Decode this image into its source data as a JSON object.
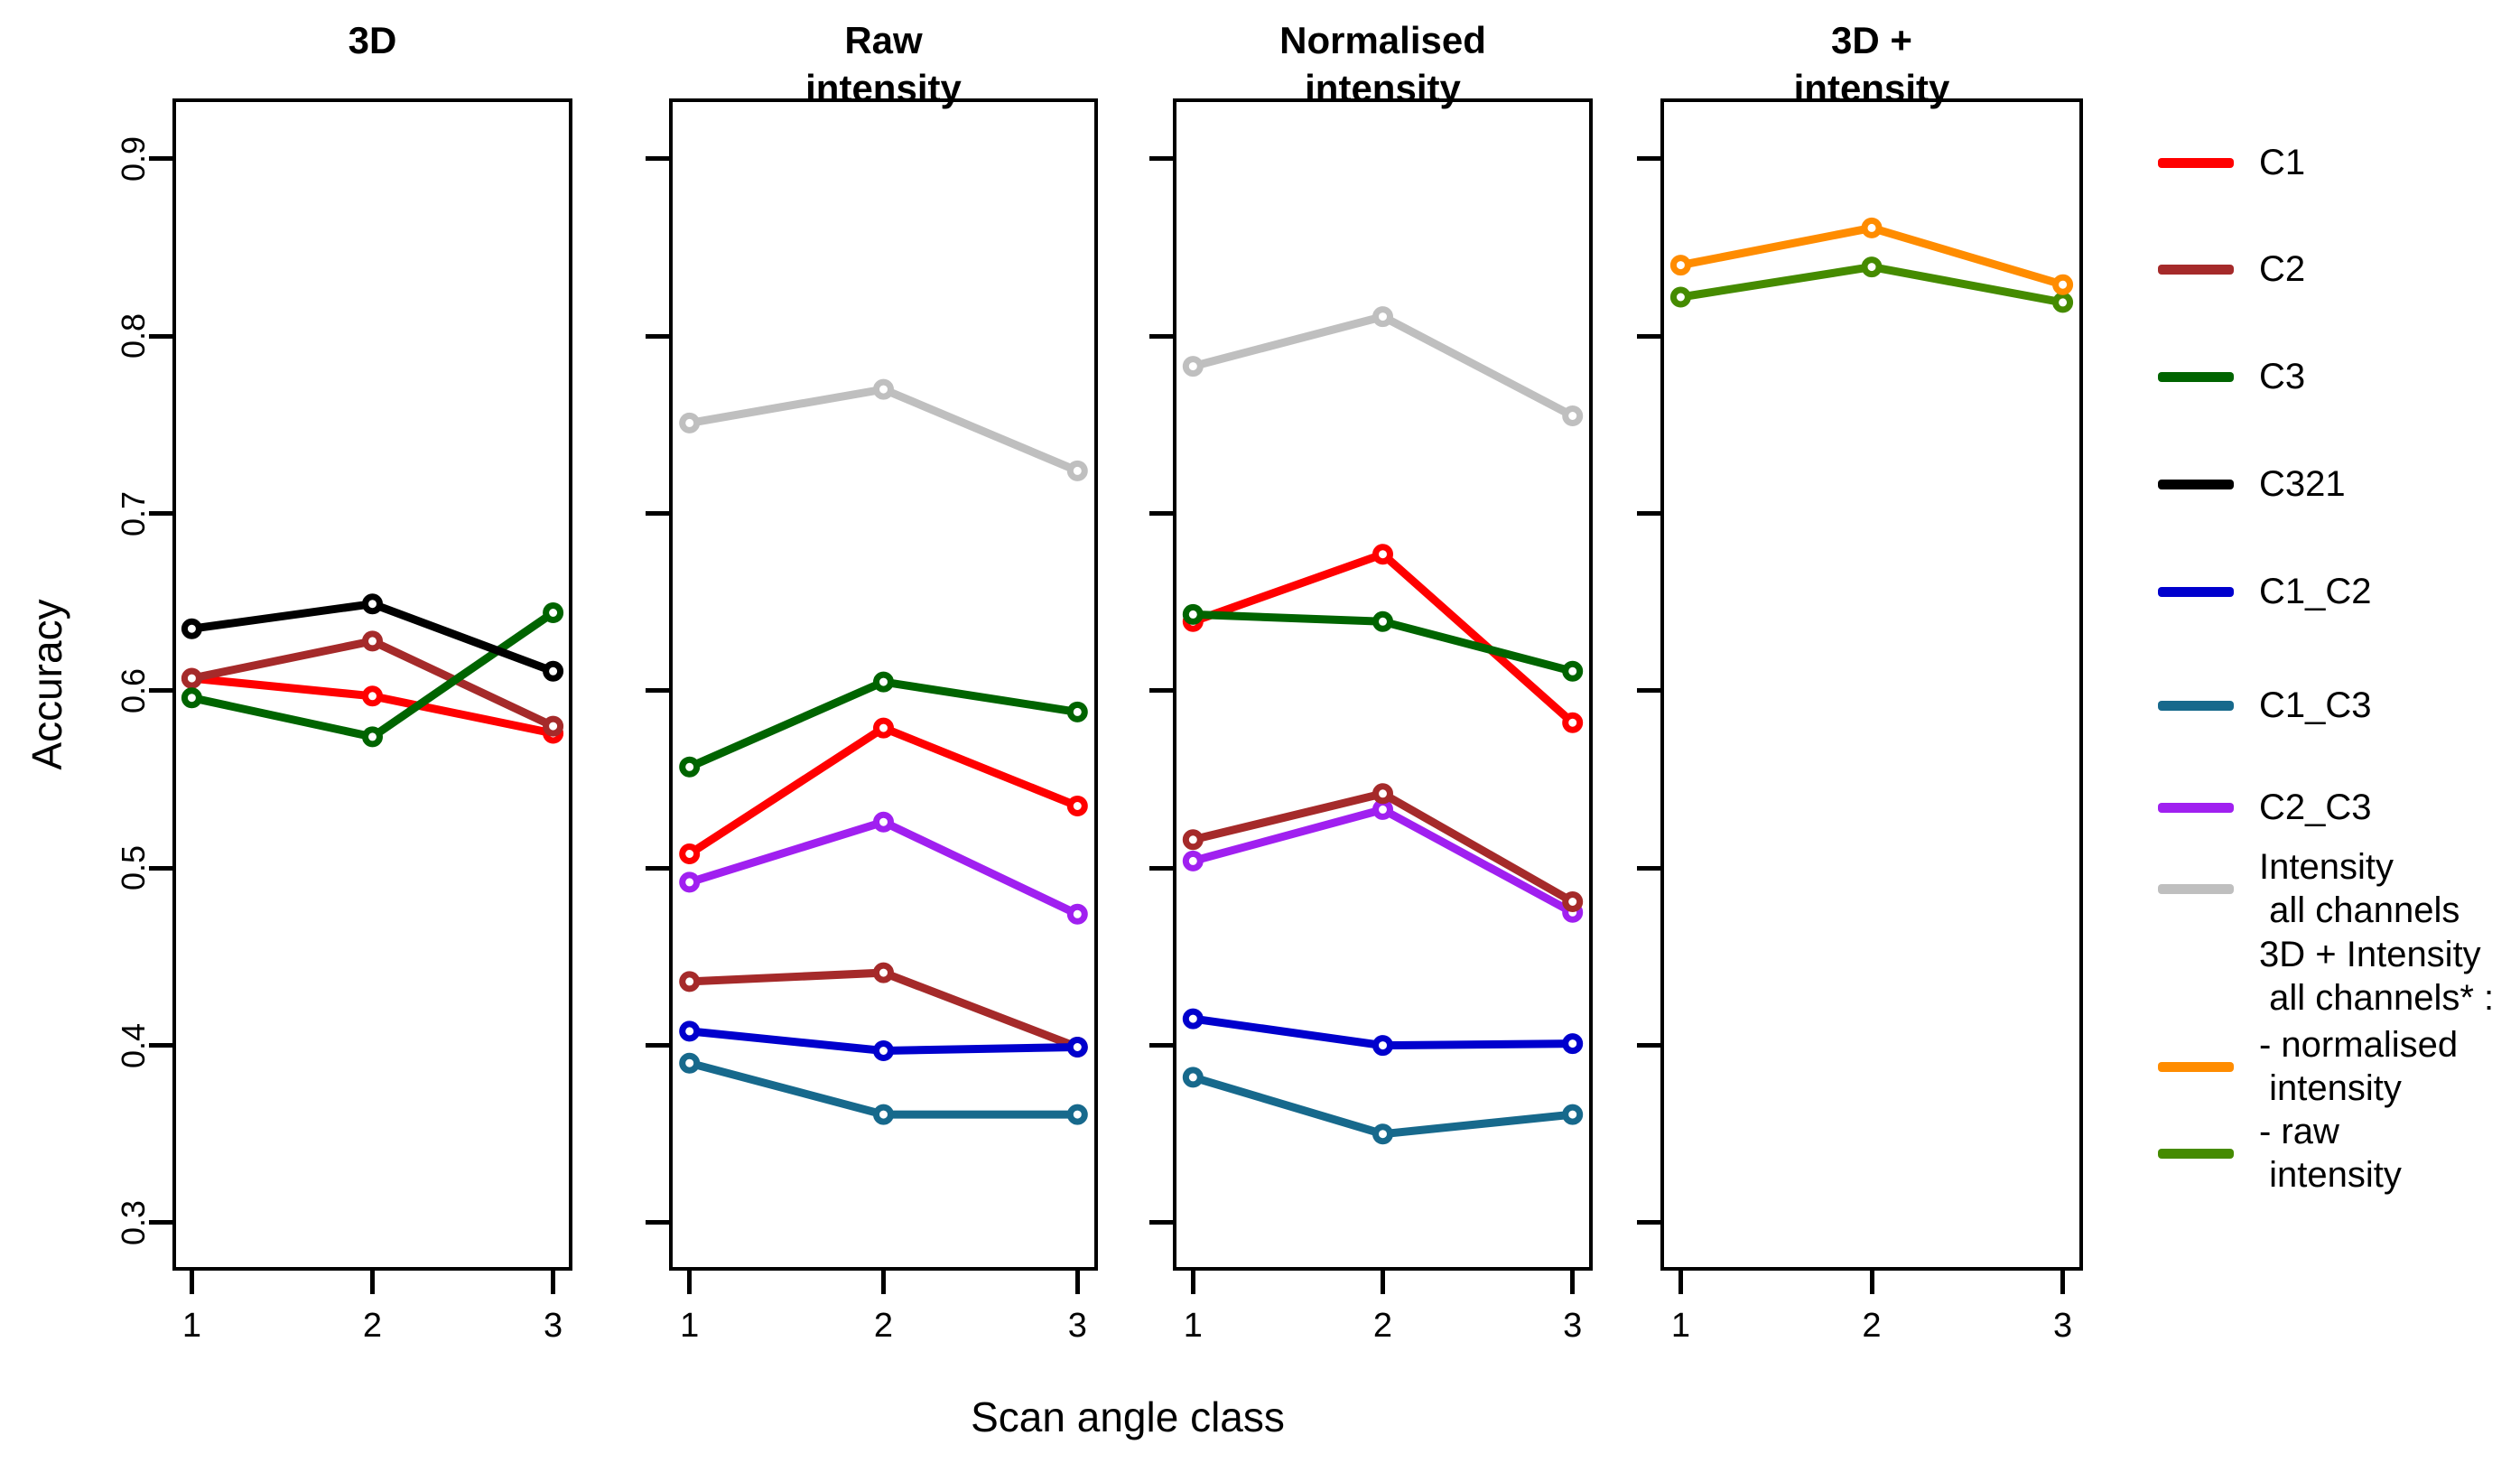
{
  "chart_data": {
    "type": "line",
    "title": "",
    "xlabel": "Scan angle class",
    "ylabel": "Accuracy",
    "x": [
      1,
      2,
      3
    ],
    "xticklabels": [
      "1",
      "2",
      "3"
    ],
    "yticks": [
      0.3,
      0.4,
      0.5,
      0.6,
      0.7,
      0.8,
      0.9
    ],
    "ylim": [
      0.275,
      0.932
    ],
    "grid": false,
    "legend_position": "right",
    "marker": "open-circle",
    "colors": {
      "C1": "#FF0000",
      "C2": "#A52A2A",
      "C3": "#006400",
      "C321": "#000000",
      "C1_C2": "#0000CD",
      "C1_C3": "#17698C",
      "C2_C3": "#A020F0",
      "intensity_all": "#BFBFBF",
      "norm_intensity": "#FF8C00",
      "raw_intensity": "#458B00"
    },
    "panels": [
      {
        "title": "3D",
        "series": [
          {
            "key": "C1",
            "name": "C1",
            "values": [
              0.607,
              0.597,
              0.576
            ]
          },
          {
            "key": "C2",
            "name": "C2",
            "values": [
              0.607,
              0.628,
              0.58
            ]
          },
          {
            "key": "C3",
            "name": "C3",
            "values": [
              0.596,
              0.574,
              0.644
            ]
          },
          {
            "key": "C321",
            "name": "C321",
            "values": [
              0.635,
              0.649,
              0.611
            ]
          }
        ]
      },
      {
        "title": "Raw\nintensity",
        "series": [
          {
            "key": "intensity_all",
            "name": "Intensity all channels",
            "values": [
              0.751,
              0.77,
              0.724
            ]
          },
          {
            "key": "C1_C3",
            "name": "C1_C3",
            "values": [
              0.39,
              0.361,
              0.361
            ]
          },
          {
            "key": "C2",
            "name": "C2",
            "values": [
              0.436,
              0.441,
              0.399
            ]
          },
          {
            "key": "C1_C2",
            "name": "C1_C2",
            "values": [
              0.408,
              0.397,
              0.399
            ]
          },
          {
            "key": "C2_C3",
            "name": "C2_C3",
            "values": [
              0.492,
              0.526,
              0.474
            ]
          },
          {
            "key": "C1",
            "name": "C1",
            "values": [
              0.508,
              0.579,
              0.535
            ]
          },
          {
            "key": "C3",
            "name": "C3",
            "values": [
              0.557,
              0.605,
              0.588
            ]
          }
        ]
      },
      {
        "title": "Normalised\nintensity",
        "series": [
          {
            "key": "intensity_all",
            "name": "Intensity all channels",
            "values": [
              0.783,
              0.811,
              0.755
            ]
          },
          {
            "key": "C1_C3",
            "name": "C1_C3",
            "values": [
              0.382,
              0.35,
              0.361
            ]
          },
          {
            "key": "C2_C3",
            "name": "C2_C3",
            "values": [
              0.504,
              0.533,
              0.475
            ]
          },
          {
            "key": "C2",
            "name": "C2",
            "values": [
              0.516,
              0.542,
              0.481
            ]
          },
          {
            "key": "C1_C2",
            "name": "C1_C2",
            "values": [
              0.415,
              0.4,
              0.401
            ]
          },
          {
            "key": "C1",
            "name": "C1",
            "values": [
              0.639,
              0.677,
              0.582
            ]
          },
          {
            "key": "C3",
            "name": "C3",
            "values": [
              0.643,
              0.639,
              0.611
            ]
          }
        ]
      },
      {
        "title": "3D +\nintensity",
        "series": [
          {
            "key": "raw_intensity",
            "name": "3D + Intensity all channels - raw intensity",
            "values": [
              0.822,
              0.839,
              0.819
            ]
          },
          {
            "key": "norm_intensity",
            "name": "3D + Intensity all channels - normalised intensity",
            "values": [
              0.84,
              0.861,
              0.829
            ]
          }
        ]
      }
    ],
    "legend": [
      {
        "key": "C1",
        "label": "C1"
      },
      {
        "key": "C2",
        "label": "C2"
      },
      {
        "key": "C3",
        "label": "C3"
      },
      {
        "key": "C321",
        "label": "C321"
      },
      {
        "key": "C1_C2",
        "label": "C1_C2"
      },
      {
        "key": "C1_C3",
        "label": "C1_C3"
      },
      {
        "key": "C2_C3",
        "label": "C2_C3"
      },
      {
        "key": "intensity_all",
        "label": "Intensity\n all channels"
      },
      {
        "key": null,
        "label": "3D + Intensity\n all channels* :"
      },
      {
        "key": "norm_intensity",
        "label": "- normalised\n intensity"
      },
      {
        "key": "raw_intensity",
        "label": "- raw\n intensity"
      }
    ]
  }
}
